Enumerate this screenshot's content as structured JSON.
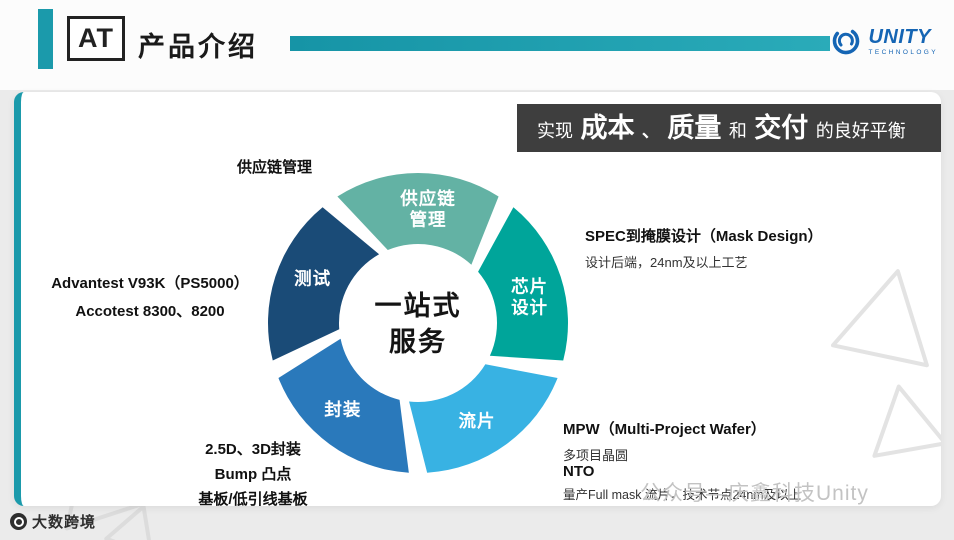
{
  "colors": {
    "accent": "#1b9aab",
    "banner_bg": "#3e3e3e",
    "brand_blue": "#1565b4",
    "page_bg": "#ebebeb"
  },
  "header": {
    "logo_text": "AT",
    "title": "产品介绍",
    "brand_name": "UNITY",
    "brand_sub": "TECHNOLOGY"
  },
  "banner": {
    "prefix": "实现",
    "em1": "成本",
    "sep1": "、",
    "em2": "质量",
    "mid": "和",
    "em3": "交付",
    "suffix": "的良好平衡"
  },
  "diagram": {
    "center_lines": [
      "一站式",
      "服务"
    ],
    "segments": [
      {
        "id": "supply-chain",
        "lines": [
          "供应链",
          "管理"
        ],
        "color": "#63b2a4",
        "angle": 0
      },
      {
        "id": "chip-design",
        "lines": [
          "芯片",
          "设计"
        ],
        "color": "#00a59a",
        "angle": 72
      },
      {
        "id": "tape-out",
        "lines": [
          "流片"
        ],
        "color": "#38b2e3",
        "angle": 144
      },
      {
        "id": "packaging",
        "lines": [
          "封装"
        ],
        "color": "#2a79bb",
        "angle": 216
      },
      {
        "id": "testing",
        "lines": [
          "测试"
        ],
        "color": "#1a4b77",
        "angle": 288
      }
    ]
  },
  "annotations": {
    "supply_label": "供应链管理",
    "testing_lines": [
      "Advantest V93K（PS5000）",
      "Accotest 8300、8200"
    ],
    "mask_title": "SPEC到掩膜设计（Mask Design）",
    "mask_sub": "设计后端，24nm及以上工艺",
    "mpw_title": "MPW（Multi-Project Wafer）",
    "mpw_sub": "多项目晶圆",
    "nto_title": "NTO",
    "nto_sub": "量产Full mask 流片，技术节点24nm及以上",
    "packaging_lines": [
      "2.5D、3D封装",
      "Bump 凸点",
      "基板/低引线基板"
    ]
  },
  "watermarks": {
    "bottom_left": "大数跨境",
    "bottom_right": "公众号—庆鑫科技Unity"
  }
}
